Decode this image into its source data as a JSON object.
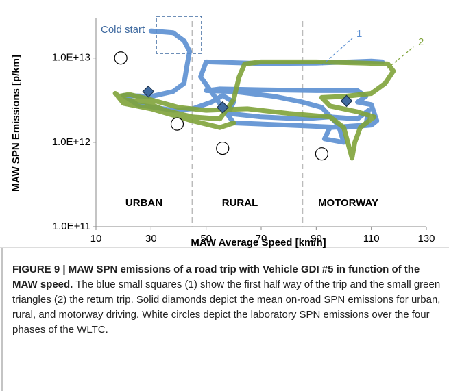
{
  "chart_data": {
    "type": "scatter",
    "x_label": "MAW Average Speed [km/h]",
    "y_label": "MAW SPN Emissions [p/km]",
    "log_y": true,
    "xlim": [
      10,
      130
    ],
    "xticks": [
      10,
      30,
      50,
      70,
      90,
      110,
      130
    ],
    "ylim": [
      100000000000.0,
      30000000000000.0
    ],
    "yticks": [
      {
        "value": 100000000000.0,
        "label": "1.0E+11"
      },
      {
        "value": 1000000000000.0,
        "label": "1.0E+12"
      },
      {
        "value": 10000000000000.0,
        "label": "1.0E+13"
      }
    ],
    "vlines": [
      45,
      85
    ],
    "regions": [
      "URBAN",
      "RURAL",
      "MOTORWAY"
    ],
    "annotation": "Cold start",
    "series": [
      {
        "name": "1",
        "color": "#5b8fd2",
        "marker": "square",
        "x": [
          30,
          38,
          42,
          44,
          43,
          42,
          38,
          30,
          20,
          25,
          38,
          45,
          52,
          56,
          60,
          58,
          70,
          85,
          95,
          105,
          109,
          108,
          95,
          93,
          100,
          98,
          92,
          85,
          75,
          60,
          50,
          55,
          70,
          90,
          105,
          108,
          105,
          110,
          112,
          110,
          100,
          80,
          60,
          48,
          50,
          70,
          90,
          110,
          114
        ],
        "values": [
          21000000000000.0,
          20000000000000.0,
          16000000000000.0,
          12000000000000.0,
          8000000000000.0,
          5000000000000.0,
          4000000000000.0,
          3500000000000.0,
          3600000000000.0,
          2800000000000.0,
          2400000000000.0,
          2500000000000.0,
          3000000000000.0,
          3600000000000.0,
          3000000000000.0,
          2200000000000.0,
          2000000000000.0,
          1900000000000.0,
          2000000000000.0,
          1900000000000.0,
          2400000000000.0,
          1600000000000.0,
          1500000000000.0,
          1100000000000.0,
          1000000000000.0,
          1600000000000.0,
          2600000000000.0,
          3000000000000.0,
          3500000000000.0,
          4000000000000.0,
          4100000000000.0,
          4300000000000.0,
          4200000000000.0,
          4100000000000.0,
          4100000000000.0,
          3500000000000.0,
          3000000000000.0,
          2800000000000.0,
          1800000000000.0,
          1600000000000.0,
          1500000000000.0,
          1600000000000.0,
          1700000000000.0,
          6000000000000.0,
          9000000000000.0,
          8600000000000.0,
          8700000000000.0,
          9200000000000.0,
          9000000000000.0
        ]
      },
      {
        "name": "2",
        "color": "#7fa33a",
        "marker": "triangle",
        "x": [
          17,
          20,
          28,
          35,
          45,
          55,
          60,
          62,
          64,
          70,
          90,
          108,
          116,
          118,
          115,
          110,
          100,
          92,
          95,
          105,
          111,
          106,
          104,
          103,
          100,
          95,
          80,
          65,
          50,
          40,
          30,
          22,
          18,
          20,
          30,
          45,
          55,
          60
        ],
        "values": [
          3800000000000.0,
          3200000000000.0,
          3000000000000.0,
          2400000000000.0,
          2000000000000.0,
          1900000000000.0,
          3200000000000.0,
          6000000000000.0,
          8500000000000.0,
          9000000000000.0,
          9000000000000.0,
          8700000000000.0,
          8500000000000.0,
          7000000000000.0,
          5000000000000.0,
          3800000000000.0,
          3500000000000.0,
          3400000000000.0,
          2700000000000.0,
          2300000000000.0,
          2000000000000.0,
          1500000000000.0,
          1000000000000.0,
          650000000000.0,
          1500000000000.0,
          2000000000000.0,
          2200000000000.0,
          2500000000000.0,
          2400000000000.0,
          2600000000000.0,
          3200000000000.0,
          3700000000000.0,
          3500000000000.0,
          2900000000000.0,
          2500000000000.0,
          1800000000000.0,
          1500000000000.0,
          1700000000000.0
        ]
      },
      {
        "color": "#3f6aa0",
        "marker": "diamond",
        "x": [
          29,
          56,
          101
        ],
        "values": [
          4000000000000.0,
          2600000000000.0,
          3100000000000.0
        ]
      },
      {
        "color": "#ffffff",
        "marker": "circle",
        "x": [
          19,
          39.5,
          56,
          92
        ],
        "values": [
          10000000000000.0,
          1650000000000.0,
          850000000000.0,
          730000000000.0
        ]
      }
    ]
  },
  "caption": {
    "label": "FIGURE 9 | MAW SPN emissions of a road trip with Vehicle GDI #5 in function of the MAW speed.",
    "text": "The blue small squares (1) show the first half way of the trip and the small green triangles (2) the return trip. Solid diamonds depict the mean on-road SPN emissions for urban, rural, and motorway driving. White circles depict the laboratory SPN emissions over the four phases of the WLTC."
  }
}
